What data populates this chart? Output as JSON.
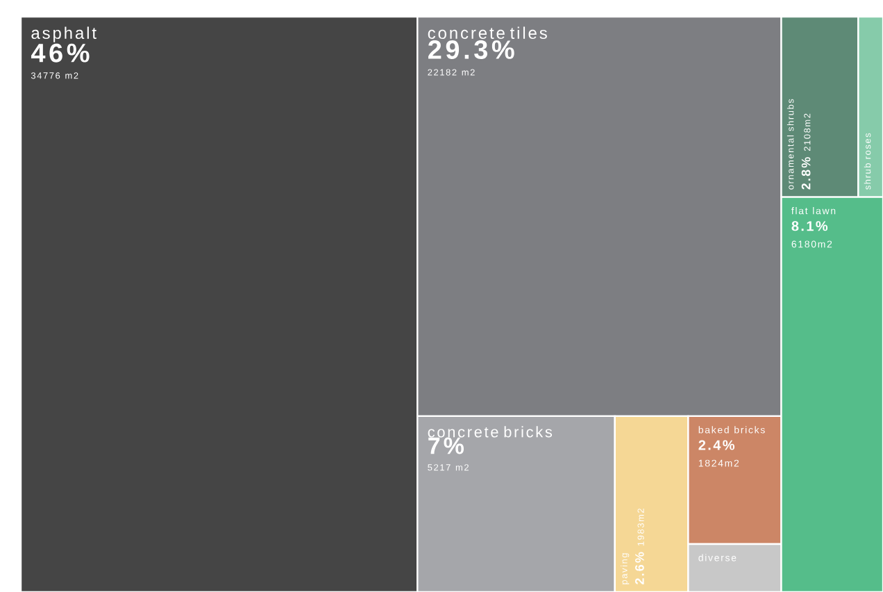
{
  "chart_data": {
    "type": "other",
    "categories": [
      "asphalt",
      "concrete tiles",
      "concrete bricks",
      "paving",
      "baked bricks",
      "diverse",
      "ornamental shrubs",
      "shrub roses",
      "flat lawn"
    ],
    "series": [
      {
        "values": [
          46,
          29.3,
          7,
          2.6,
          2.4,
          null,
          2.8,
          null,
          8.1
        ],
        "value_labels": [
          "46%",
          "29.3%",
          "7%",
          "2.6%",
          "2.4%",
          null,
          "2.8%",
          null,
          "8.1%"
        ],
        "colors": [
          "#454545",
          "#7d7e82",
          "#a5a6aa",
          "#f5d795",
          "#cc8666",
          "#c8c8c8",
          "#5e8a76",
          "#86cbaa",
          "#55bd8a"
        ]
      }
    ],
    "annotations": [
      "34776 m2",
      "22182 m2",
      "5217 m2",
      "1983m2",
      "1824m2",
      "2108m2",
      "6180m2"
    ]
  }
}
